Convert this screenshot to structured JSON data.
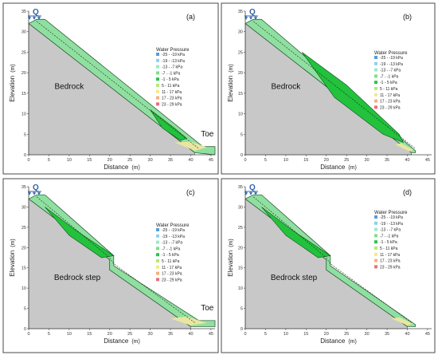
{
  "axes": {
    "xlabel": "Distance",
    "xunit": "(m)",
    "ylabel": "Elevation",
    "yunit": "(m)",
    "ytick_values": [
      0,
      5,
      10,
      15,
      20,
      25,
      30,
      35
    ]
  },
  "legend": {
    "title": "Water Pressure",
    "entries": [
      {
        "label": "-25 - -19 kPa",
        "color": "#5a9bd8"
      },
      {
        "label": "-19 - -13 kPa",
        "color": "#8fd0e8"
      },
      {
        "label": "-13 - -7 kPa",
        "color": "#9de8c8"
      },
      {
        "label": "-7 - -1 kPa",
        "color": "#7de08a"
      },
      {
        "label": "-1 - 5 kPa",
        "color": "#2fc24a"
      },
      {
        "label": "5 - 11 kPa",
        "color": "#b8e878"
      },
      {
        "label": "11 - 17 kPa",
        "color": "#f3e98a"
      },
      {
        "label": "17 - 23 kPa",
        "color": "#f2b27a"
      },
      {
        "label": "23 - 29 kPa",
        "color": "#e8707a"
      }
    ]
  },
  "inflow_label": "Q",
  "panels": [
    {
      "id": "a",
      "label": "(a)",
      "bedrock_label": "Bedrock",
      "toe_label": "Toe",
      "xtick_values": [
        0,
        5,
        10,
        15,
        20,
        25,
        30,
        35,
        40,
        45
      ]
    },
    {
      "id": "b",
      "label": "(b)",
      "bedrock_label": "Bedrock",
      "toe_label": "",
      "xtick_values": [
        0,
        5,
        10,
        15,
        20,
        25,
        30,
        35,
        40,
        45
      ]
    },
    {
      "id": "c",
      "label": "(c)",
      "bedrock_label": "Bedrock step",
      "toe_label": "Toe",
      "xtick_values": [
        0,
        5,
        10,
        15,
        20,
        25,
        30,
        35,
        40,
        45
      ]
    },
    {
      "id": "d",
      "label": "(d)",
      "bedrock_label": "Bedrock step",
      "toe_label": "",
      "xtick_values": [
        0,
        5,
        10,
        15,
        20,
        25,
        30,
        35,
        40,
        45
      ]
    }
  ]
}
